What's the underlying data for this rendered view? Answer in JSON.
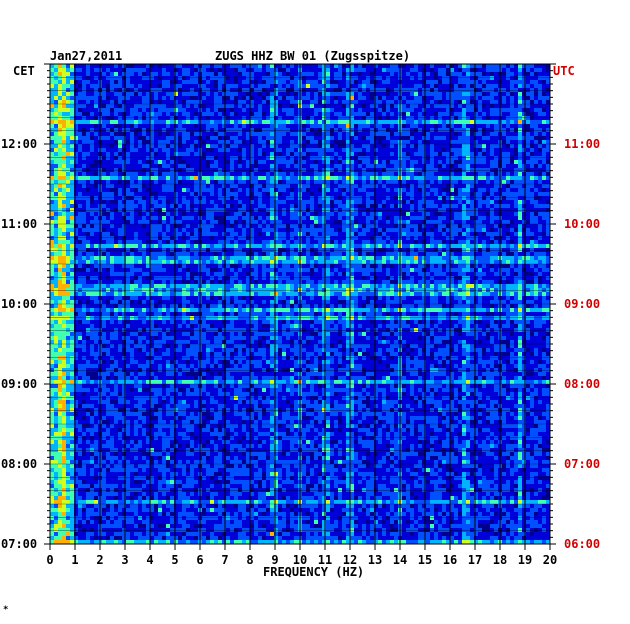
{
  "header": {
    "date": "Jan27,2011",
    "title": "ZUGS HHZ BW 01 (Zugsspitze)",
    "left_zone": "CET",
    "right_zone": "UTC"
  },
  "chart_data": {
    "type": "heatmap",
    "title": "ZUGS HHZ BW 01 (Zugsspitze)",
    "date": "Jan27,2011",
    "xlabel": "FREQUENCY (HZ)",
    "xlim": [
      0,
      20
    ],
    "x_ticks": [
      "0",
      "1",
      "2",
      "3",
      "4",
      "5",
      "6",
      "7",
      "8",
      "9",
      "10",
      "11",
      "12",
      "13",
      "14",
      "15",
      "16",
      "17",
      "18",
      "19",
      "20"
    ],
    "y_ticks_left_cet": [
      "12:00",
      "11:00",
      "10:00",
      "09:00",
      "08:00",
      "07:00"
    ],
    "y_ticks_right_utc": [
      "11:00",
      "10:00",
      "09:00",
      "08:00",
      "07:00",
      "06:00"
    ],
    "ylim_cet": [
      "07:00",
      "13:00"
    ],
    "grid": true,
    "colormap": [
      "#00008c",
      "#0000d8",
      "#0050ff",
      "#00b4ff",
      "#40ffb0",
      "#d0ff20",
      "#ffb000",
      "#ff2000"
    ],
    "prominent_features_hz": [
      {
        "freq_hz": 0.5,
        "level": "high"
      },
      {
        "freq_hz": 9.0,
        "level": "medium"
      },
      {
        "freq_hz": 10.0,
        "level": "medium"
      },
      {
        "freq_hz": 11.0,
        "level": "medium"
      },
      {
        "freq_hz": 12.0,
        "level": "medium"
      },
      {
        "freq_hz": 14.0,
        "level": "medium"
      },
      {
        "freq_hz": 16.7,
        "level": "medium"
      },
      {
        "freq_hz": 18.8,
        "level": "high"
      }
    ]
  },
  "footer": {
    "mark": "*"
  }
}
